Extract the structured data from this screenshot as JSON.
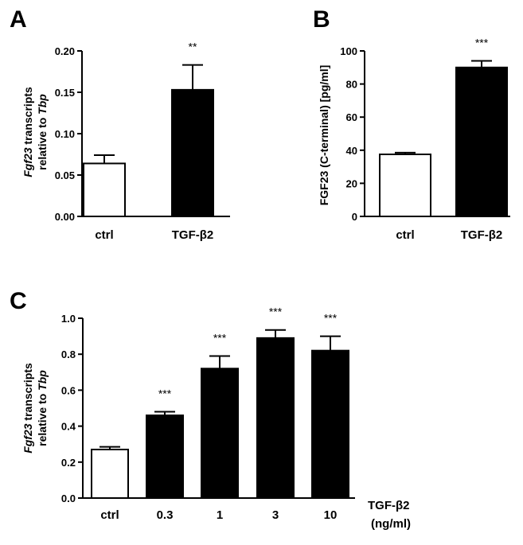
{
  "chart_data": [
    {
      "panel_label": "A",
      "type": "bar",
      "ylabel_italic": "Fgf23",
      "ylabel_rest": " transcripts",
      "ylabel_line2": "relative to ",
      "ylabel_line2_italic": "Tbp",
      "categories": [
        "ctrl",
        "TGF-β2"
      ],
      "values": [
        0.064,
        0.153
      ],
      "errors": [
        0.01,
        0.03
      ],
      "fills": [
        "#ffffff",
        "#000000"
      ],
      "significance": [
        "",
        "**"
      ],
      "ylim": [
        0,
        0.2
      ],
      "yticks": [
        "0.00",
        "0.05",
        "0.10",
        "0.15",
        "0.20"
      ]
    },
    {
      "panel_label": "B",
      "type": "bar",
      "ylabel": "FGF23 (C-terminal) [pg/ml]",
      "categories": [
        "ctrl",
        "TGF-β2"
      ],
      "values": [
        37.5,
        90
      ],
      "errors": [
        1.0,
        4.0
      ],
      "fills": [
        "#ffffff",
        "#000000"
      ],
      "significance": [
        "",
        "***"
      ],
      "ylim": [
        0,
        100
      ],
      "yticks": [
        "0",
        "20",
        "40",
        "60",
        "80",
        "100"
      ]
    },
    {
      "panel_label": "C",
      "type": "bar",
      "ylabel_italic": "Fgf23",
      "ylabel_rest": " transcripts",
      "ylabel_line2": "relative to ",
      "ylabel_line2_italic": "Tbp",
      "categories": [
        "ctrl",
        "0.3",
        "1",
        "3",
        "10"
      ],
      "values": [
        0.27,
        0.46,
        0.72,
        0.89,
        0.82
      ],
      "errors": [
        0.015,
        0.02,
        0.07,
        0.045,
        0.08
      ],
      "fills": [
        "#ffffff",
        "#000000",
        "#000000",
        "#000000",
        "#000000"
      ],
      "significance": [
        "",
        "***",
        "***",
        "***",
        "***"
      ],
      "ylim": [
        0,
        1.0
      ],
      "yticks": [
        "0.0",
        "0.2",
        "0.4",
        "0.6",
        "0.8",
        "1.0"
      ],
      "xlabel_line1": "TGF-β2",
      "xlabel_line2": "(ng/ml)"
    }
  ]
}
